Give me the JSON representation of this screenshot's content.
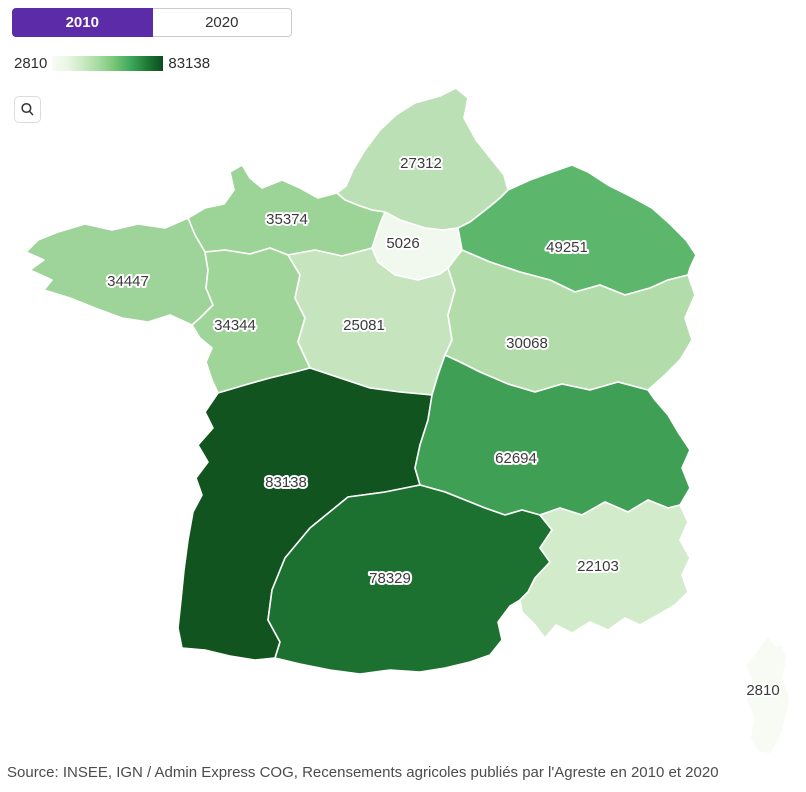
{
  "toggle": {
    "selected": "2010",
    "options": [
      {
        "label": "2010",
        "selected": true
      },
      {
        "label": "2020",
        "selected": false
      }
    ]
  },
  "legend": {
    "min": "2810",
    "max": "83138",
    "gradient_stops": [
      "#f7fcf5",
      "#e8f6e3",
      "#c9e8c2",
      "#a3da9d",
      "#73c476",
      "#3da65a",
      "#1e7a35",
      "#0b4d20"
    ]
  },
  "controls": {
    "zoom_button_icon": "magnifier-icon"
  },
  "colors": {
    "accent": "#5b2ba8",
    "region_border": "#ffffff",
    "label_text": "#3b3b3b"
  },
  "map": {
    "regions": [
      {
        "id": "hauts-de-france",
        "value": "27312",
        "fill": "#bce0b5"
      },
      {
        "id": "normandie",
        "value": "35374",
        "fill": "#9cd396"
      },
      {
        "id": "ile-de-france",
        "value": "5026",
        "fill": "#f1f9ee"
      },
      {
        "id": "grand-est",
        "value": "49251",
        "fill": "#5cb76c"
      },
      {
        "id": "bretagne",
        "value": "34447",
        "fill": "#9ed499"
      },
      {
        "id": "pays-de-la-loire",
        "value": "34344",
        "fill": "#a0d59a"
      },
      {
        "id": "centre-val-de-loire",
        "value": "25081",
        "fill": "#c6e5bf"
      },
      {
        "id": "bourgogne-franche-comte",
        "value": "30068",
        "fill": "#b3dcab"
      },
      {
        "id": "nouvelle-aquitaine",
        "value": "83138",
        "fill": "#11541f"
      },
      {
        "id": "auvergne-rhone-alpes",
        "value": "62694",
        "fill": "#3fa055"
      },
      {
        "id": "occitanie",
        "value": "78329",
        "fill": "#1d7130"
      },
      {
        "id": "provence-alpes-cote-d-azur",
        "value": "22103",
        "fill": "#d2ebcb"
      },
      {
        "id": "corse",
        "value": "2810",
        "fill": "#f7fbf4"
      }
    ]
  },
  "chart_data": {
    "type": "heatmap",
    "subtype": "choropleth",
    "categories": [
      "27312",
      "35374",
      "5026",
      "49251",
      "34447",
      "34344",
      "25081",
      "30068",
      "83138",
      "62694",
      "78329",
      "22103",
      "2810"
    ],
    "values": [
      27312,
      35374,
      5026,
      49251,
      34447,
      34344,
      25081,
      30068,
      83138,
      62694,
      78329,
      22103,
      2810
    ],
    "color_range": [
      2810,
      83138
    ],
    "legend_position": "top-left"
  },
  "source": {
    "text": "Source: INSEE, IGN / Admin Express COG, Recensements agricoles publiés par l'Agreste en 2010 et 2020"
  }
}
